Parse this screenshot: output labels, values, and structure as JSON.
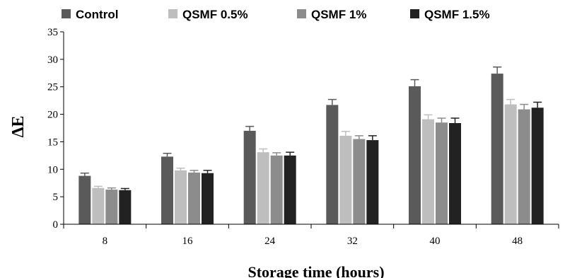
{
  "chart_data": {
    "type": "bar",
    "xlabel": "Storage time (hours)",
    "ylabel": "ΔE",
    "categories": [
      "8",
      "16",
      "24",
      "32",
      "40",
      "48"
    ],
    "ylim": [
      0,
      35
    ],
    "yticks": [
      0,
      5,
      10,
      15,
      20,
      25,
      30,
      35
    ],
    "grid": false,
    "legend_position": "top",
    "series": [
      {
        "name": "Control",
        "color": "#5a5a5a",
        "values": [
          8.8,
          12.3,
          17.0,
          21.7,
          25.1,
          27.4
        ],
        "errors": [
          0.5,
          0.6,
          0.8,
          1.0,
          1.2,
          1.2
        ]
      },
      {
        "name": "QSMF 0.5%",
        "color": "#bebebe",
        "values": [
          6.6,
          9.8,
          13.1,
          16.1,
          19.1,
          21.8
        ],
        "errors": [
          0.3,
          0.4,
          0.6,
          0.8,
          0.8,
          0.9
        ]
      },
      {
        "name": "QSMF 1%",
        "color": "#8c8c8c",
        "values": [
          6.3,
          9.4,
          12.5,
          15.5,
          18.5,
          20.9
        ],
        "errors": [
          0.3,
          0.4,
          0.5,
          0.6,
          0.8,
          0.9
        ]
      },
      {
        "name": "QSMF 1.5%",
        "color": "#222222",
        "values": [
          6.2,
          9.3,
          12.5,
          15.3,
          18.4,
          21.2
        ],
        "errors": [
          0.3,
          0.5,
          0.6,
          0.8,
          0.9,
          1.0
        ]
      }
    ]
  }
}
